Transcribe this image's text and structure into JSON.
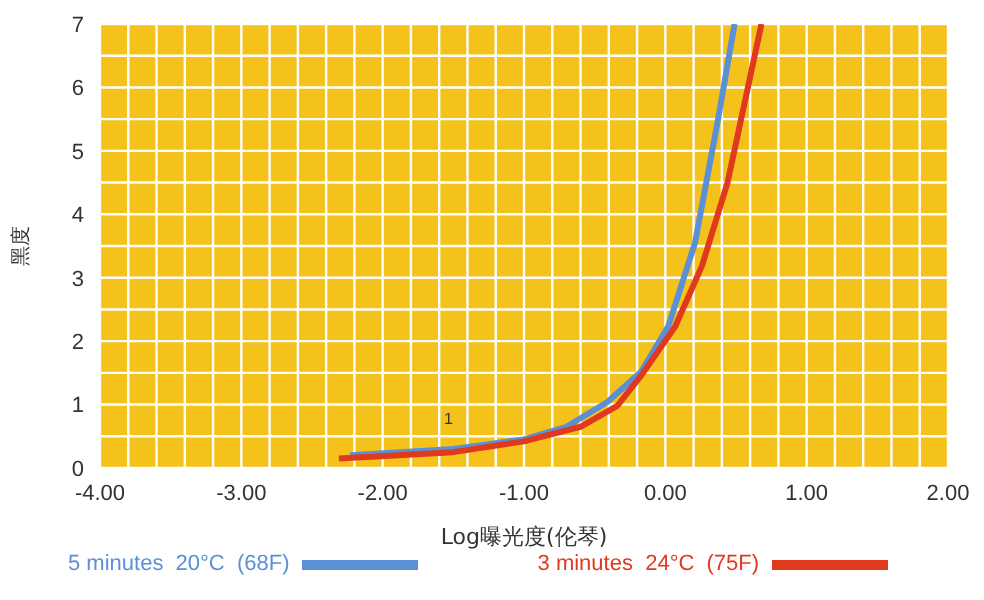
{
  "chart_data": {
    "type": "line",
    "xlabel": "Log曝光度(伦琴)",
    "ylabel": "黑度",
    "xlim": [
      -4,
      2
    ],
    "ylim": [
      0,
      7
    ],
    "xticks": [
      {
        "value": -4,
        "label": "-4.00"
      },
      {
        "value": -3.8,
        "label": null
      },
      {
        "value": -3.6,
        "label": null
      },
      {
        "value": -3.4,
        "label": null
      },
      {
        "value": -3.2,
        "label": null
      },
      {
        "value": -3,
        "label": "-3.00"
      },
      {
        "value": -2.8,
        "label": null
      },
      {
        "value": -2.6,
        "label": null
      },
      {
        "value": -2.4,
        "label": null
      },
      {
        "value": -2.2,
        "label": null
      },
      {
        "value": -2,
        "label": "-2.00"
      },
      {
        "value": -1.8,
        "label": null
      },
      {
        "value": -1.6,
        "label": null
      },
      {
        "value": -1.4,
        "label": null
      },
      {
        "value": -1.2,
        "label": null
      },
      {
        "value": -1,
        "label": "-1.00"
      },
      {
        "value": -0.8,
        "label": null
      },
      {
        "value": -0.6,
        "label": null
      },
      {
        "value": -0.4,
        "label": null
      },
      {
        "value": -0.2,
        "label": null
      },
      {
        "value": 0,
        "label": "0.00"
      },
      {
        "value": 0.2,
        "label": null
      },
      {
        "value": 0.4,
        "label": null
      },
      {
        "value": 0.6,
        "label": null
      },
      {
        "value": 0.8,
        "label": null
      },
      {
        "value": 1,
        "label": "1.00"
      },
      {
        "value": 1.2,
        "label": null
      },
      {
        "value": 1.4,
        "label": null
      },
      {
        "value": 1.6,
        "label": null
      },
      {
        "value": 1.8,
        "label": null
      },
      {
        "value": 2,
        "label": "2.00"
      }
    ],
    "yticks": [
      0,
      {
        "value": 0.5,
        "label": null
      },
      1,
      {
        "value": 1.5,
        "label": null
      },
      2,
      {
        "value": 2.5,
        "label": null
      },
      3,
      {
        "value": 3.5,
        "label": null
      },
      4,
      {
        "value": 4.5,
        "label": null
      },
      5,
      {
        "value": 5.5,
        "label": null
      },
      6,
      {
        "value": 6.5,
        "label": null
      },
      7
    ],
    "grid": true,
    "legend": "bottom",
    "marker": "none",
    "line_style": "solid",
    "annotations": [
      "1"
    ],
    "series": [
      {
        "name": "5 minutes  20°C  (68F)",
        "color": "#5b8fd6",
        "x": [
          -2.23,
          -1.5,
          -1.0,
          -0.7,
          -0.41,
          -0.17,
          0.02,
          0.21,
          0.37,
          0.49
        ],
        "values": [
          0.2,
          0.3,
          0.45,
          0.65,
          1.04,
          1.52,
          2.23,
          3.55,
          5.46,
          7.0
        ]
      },
      {
        "name": "3 minutes  24°C  (75F)",
        "color": "#e03a1e",
        "x": [
          -2.31,
          -1.5,
          -1.0,
          -0.6,
          -0.34,
          -0.17,
          0.07,
          0.26,
          0.44,
          0.59,
          0.68
        ],
        "values": [
          0.15,
          0.25,
          0.42,
          0.65,
          0.98,
          1.46,
          2.23,
          3.19,
          4.5,
          6.06,
          7.0
        ]
      }
    ]
  }
}
